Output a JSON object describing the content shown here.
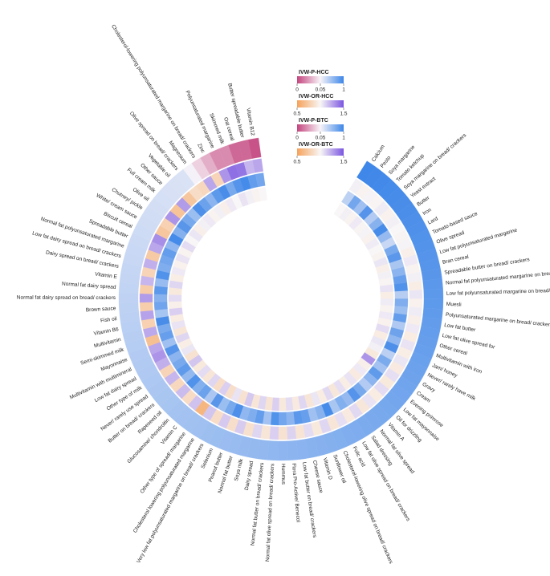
{
  "chart_data": {
    "type": "circular_heatmap",
    "categories": [
      "Calcium",
      "Pesto",
      "Soya margarine",
      "Tomato ketchup",
      "Soya margarine on bread/ crackers",
      "Yeast extract",
      "Butter",
      "Iron",
      "Lard",
      "Tomato-based sauce",
      "Olive spread",
      "Low fat polyunsaturated margarine",
      "Bran cereal",
      "Spreadable butter on bread/ crackers",
      "Normal fat polyunsaturated margarine on bread/ crackers",
      "Low fat polyunsaturated margarine on bread/ crackers",
      "Muesli",
      "Polyunsaturated margarine on bread/ crackers",
      "Low fat butter",
      "Low fat olive spread for",
      "Other cereal",
      "Multivitamin with iron",
      "Jam/ honey",
      "Never/ rarely have milk",
      "Gravy",
      "Cream",
      "Evening primrose",
      "Low fat mayonnaise",
      "Oil for drizzling",
      "Vitamin A",
      "Normal fat olive spread",
      "Salad dressing",
      "Low fat olive spread on bread/ crackers",
      "Folic acid",
      "Cholesterol-lowering olive spread on bread/ crackers",
      "Sunflower oil",
      "Vitamin D",
      "Cheese sauce",
      "Low fat butter on bread/ crackers",
      "Flora Pro-Active/ Benecol",
      "Hummus",
      "Normal fat olive spread on bread/ crackers",
      "Normal fat butter on bread/ crackers",
      "Dairy spread",
      "Soya milk",
      "Normal fat butter",
      "Peanut butter",
      "Selenium",
      "Very low fat polyunsaturated margarine on bread/ crackers",
      "Cholesterol lowering polyunsaturated margarine",
      "Other type of spread/ margarine",
      "Vitamin C",
      "Glucosamine/ chondroitin",
      "Rapeseed oil",
      "Butter on bread/ crackers",
      "Never/ rarely use spread",
      "Other type of milk",
      "Low fat dairy spread",
      "Multivitamin with multimineral",
      "Mayonnaise",
      "Semi-skimmed milk",
      "Multivitamin",
      "Vitamin B6",
      "Fish oil",
      "Brown sauce",
      "Normal fat dairy spread on bread/ crackers",
      "Normal fat dairy spread",
      "Vitamin E",
      "Dairy spread on bread/ crackers",
      "Low fat dairy spread on bread/ crackers",
      "Normal fat polyunsaturated margarine",
      "Spreadable butter",
      "Biscuit cereal",
      "White/ cream sauce",
      "Chutney/ pickle",
      "Olive oil",
      "Full cream milk",
      "Other sauce",
      "Vegetable oil",
      "Olive spread on bread/ crackers",
      "Magnesium",
      "Cholesterol-lowering polyunsaturated margarine on bread/ crackers",
      "Zinc",
      "Polyunsaturated margarine",
      "Skimmed milk",
      "Oat cereal",
      "Butter spreadable butter",
      "Vitamin B12"
    ],
    "series": [
      {
        "name": "IVW-P-HCC",
        "ticks": [
          0,
          0.05,
          1
        ],
        "colors": [
          "#c4457e",
          "#f8f4f8",
          "#3d86e8"
        ],
        "values": [
          0.99,
          0.98,
          0.97,
          0.96,
          0.95,
          0.94,
          0.93,
          0.92,
          0.91,
          0.9,
          0.89,
          0.88,
          0.87,
          0.86,
          0.85,
          0.84,
          0.83,
          0.82,
          0.81,
          0.8,
          0.79,
          0.78,
          0.77,
          0.76,
          0.75,
          0.74,
          0.73,
          0.72,
          0.71,
          0.7,
          0.69,
          0.68,
          0.67,
          0.66,
          0.65,
          0.64,
          0.63,
          0.62,
          0.61,
          0.6,
          0.59,
          0.58,
          0.57,
          0.56,
          0.55,
          0.54,
          0.53,
          0.52,
          0.51,
          0.5,
          0.49,
          0.48,
          0.47,
          0.46,
          0.45,
          0.44,
          0.43,
          0.42,
          0.41,
          0.4,
          0.39,
          0.38,
          0.37,
          0.36,
          0.35,
          0.34,
          0.33,
          0.32,
          0.31,
          0.3,
          0.29,
          0.28,
          0.27,
          0.26,
          0.25,
          0.24,
          0.23,
          0.22,
          0.21,
          0.2,
          0.07,
          0.04,
          0.03,
          0.02,
          0.02,
          0.01,
          0.01,
          0.004
        ]
      },
      {
        "name": "IVW-OR-HCC",
        "ticks": [
          0.5,
          1.5
        ],
        "colors": [
          "#f5a25a",
          "#f8f6f6",
          "#7a55e0"
        ],
        "values": [
          1.02,
          0.98,
          1.01,
          0.99,
          1.03,
          0.97,
          1.02,
          1.0,
          0.99,
          1.01,
          0.96,
          1.04,
          0.98,
          1.02,
          0.95,
          1.05,
          0.97,
          1.03,
          0.96,
          1.04,
          0.94,
          1.06,
          0.95,
          1.05,
          0.93,
          1.07,
          0.92,
          1.08,
          0.94,
          1.06,
          0.91,
          1.09,
          0.93,
          1.07,
          0.9,
          1.1,
          0.92,
          1.08,
          0.89,
          1.11,
          0.88,
          1.12,
          0.9,
          1.1,
          0.87,
          1.13,
          0.86,
          1.14,
          0.85,
          1.15,
          0.62,
          1.16,
          0.84,
          1.18,
          0.82,
          1.2,
          0.8,
          1.22,
          1.3,
          1.25,
          0.68,
          1.24,
          0.78,
          1.26,
          0.76,
          1.28,
          0.75,
          1.2,
          0.8,
          1.22,
          0.74,
          1.25,
          1.32,
          0.72,
          0.78,
          1.3,
          0.7,
          1.28,
          0.72,
          0.85,
          0.82,
          1.25,
          0.8,
          1.3,
          1.42,
          1.4,
          1.2,
          1.25
        ]
      },
      {
        "name": "IVW-P-BTC",
        "ticks": [
          0,
          0.05,
          1
        ],
        "colors": [
          "#c4457e",
          "#f8f4f8",
          "#3d86e8"
        ],
        "values": [
          0.35,
          0.72,
          0.5,
          0.88,
          0.4,
          0.62,
          0.95,
          0.55,
          0.3,
          0.7,
          0.85,
          0.45,
          0.6,
          0.78,
          0.9,
          0.38,
          0.66,
          0.52,
          0.8,
          0.42,
          0.75,
          0.58,
          0.92,
          0.36,
          0.68,
          0.48,
          0.82,
          0.6,
          0.4,
          0.7,
          0.88,
          0.55,
          0.65,
          0.45,
          0.95,
          0.62,
          0.5,
          0.78,
          0.85,
          0.6,
          0.72,
          0.9,
          0.48,
          0.8,
          0.66,
          0.58,
          0.92,
          0.7,
          0.52,
          0.86,
          0.44,
          0.76,
          0.64,
          0.9,
          0.56,
          0.82,
          0.7,
          0.6,
          0.88,
          0.5,
          0.78,
          0.68,
          0.94,
          0.46,
          0.74,
          0.62,
          0.84,
          0.54,
          0.9,
          0.66,
          0.72,
          0.8,
          0.58,
          0.96,
          0.64,
          0.86,
          0.7,
          0.52,
          0.92,
          0.76,
          0.6,
          0.84,
          0.94,
          0.7,
          0.88,
          0.96,
          0.8,
          0.72
        ]
      },
      {
        "name": "IVW-OR-BTC",
        "ticks": [
          0.5,
          1.5
        ],
        "colors": [
          "#f5a25a",
          "#f8f6f6",
          "#7a55e0"
        ],
        "values": [
          1.0,
          1.02,
          0.98,
          1.04,
          0.99,
          1.01,
          0.97,
          1.03,
          1.0,
          0.98,
          1.05,
          0.96,
          1.02,
          0.99,
          1.06,
          0.95,
          1.03,
          0.98,
          1.04,
          0.97,
          1.08,
          0.94,
          1.05,
          1.02,
          0.92,
          1.3,
          0.96,
          1.04,
          0.93,
          1.06,
          0.95,
          1.07,
          0.91,
          1.09,
          0.94,
          1.05,
          0.9,
          1.1,
          0.93,
          1.08,
          0.92,
          1.12,
          0.89,
          1.1,
          0.9,
          1.14,
          0.88,
          1.06,
          0.86,
          1.12,
          0.85,
          1.1,
          0.9,
          1.08,
          0.92,
          1.15,
          0.88,
          1.05,
          0.95,
          1.1,
          0.9,
          1.06,
          0.94,
          1.12,
          0.96,
          1.08,
          0.92,
          1.1,
          0.95,
          1.04,
          0.97,
          1.06,
          0.98,
          1.08,
          1.0,
          1.05,
          0.96,
          1.02,
          1.04,
          0.98,
          1.02,
          0.96,
          1.04,
          1.0,
          1.06,
          1.02,
          0.98,
          1.0
        ]
      }
    ]
  }
}
